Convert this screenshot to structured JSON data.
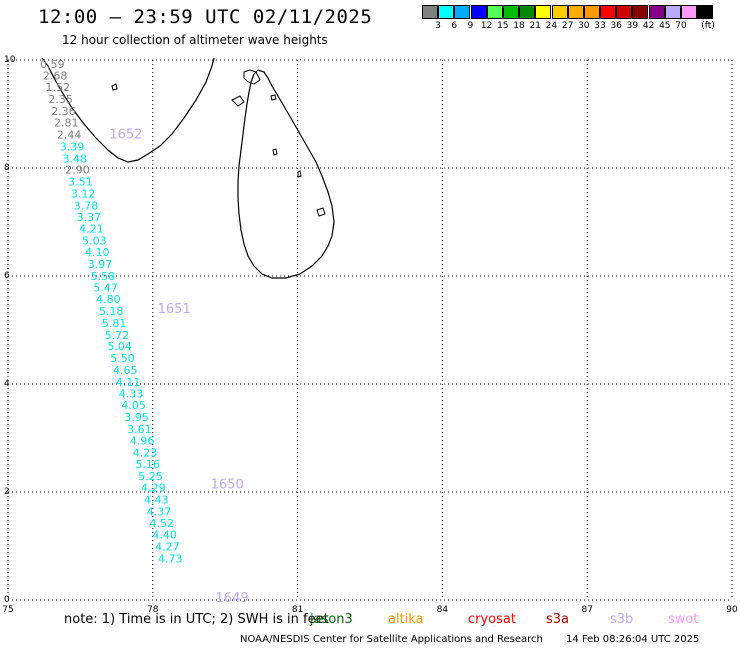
{
  "header": {
    "title": "12:00 – 23:59 UTC 02/11/2025",
    "subtitle": "12 hour collection of altimeter wave heights"
  },
  "legend": {
    "colors": [
      "#808080",
      "#00ffff",
      "#00aaff",
      "#0000ff",
      "#55ff55",
      "#00bb00",
      "#008800",
      "#ffff00",
      "#ffcc00",
      "#ffaa00",
      "#ff9900",
      "#ff0000",
      "#cc0000",
      "#880000",
      "#880088",
      "#bbaaff",
      "#ff99ff",
      "#000000"
    ],
    "labels": [
      "3",
      "6",
      "9",
      "12",
      "15",
      "18",
      "21",
      "24",
      "27",
      "30",
      "33",
      "36",
      "39",
      "42",
      "45",
      "70"
    ],
    "unit": "(ft)"
  },
  "map": {
    "lon_ticks": [
      "75",
      "78",
      "81",
      "84",
      "87",
      "90"
    ],
    "lat_ticks": [
      "10",
      "8",
      "6",
      "4",
      "2",
      "0"
    ],
    "lon_range": [
      75,
      90
    ],
    "lat_range": [
      0,
      10
    ],
    "grid": true,
    "track_points": [
      {
        "lat": 9.93,
        "value": "0.59",
        "color": "#808080"
      },
      {
        "lat": 9.71,
        "value": "2.68",
        "color": "#808080"
      },
      {
        "lat": 9.5,
        "value": "1.52",
        "color": "#808080"
      },
      {
        "lat": 9.28,
        "value": "2.35",
        "color": "#808080"
      },
      {
        "lat": 9.06,
        "value": "2.36",
        "color": "#808080"
      },
      {
        "lat": 8.84,
        "value": "2.81",
        "color": "#808080"
      },
      {
        "lat": 8.62,
        "value": "2.44",
        "color": "#808080"
      },
      {
        "lat": 8.4,
        "value": "3.39",
        "color": "#00e5e5"
      },
      {
        "lat": 8.18,
        "value": "3.48",
        "color": "#00e5e5"
      },
      {
        "lat": 7.97,
        "value": "2.90",
        "color": "#808080"
      },
      {
        "lat": 7.75,
        "value": "3.51",
        "color": "#00e5e5"
      },
      {
        "lat": 7.53,
        "value": "3.12",
        "color": "#00e5e5"
      },
      {
        "lat": 7.31,
        "value": "3.78",
        "color": "#00e5e5"
      },
      {
        "lat": 7.09,
        "value": "3.37",
        "color": "#00e5e5"
      },
      {
        "lat": 6.88,
        "value": "4.21",
        "color": "#00e5e5"
      },
      {
        "lat": 6.66,
        "value": "5.03",
        "color": "#00e5e5"
      },
      {
        "lat": 6.44,
        "value": "4.10",
        "color": "#00e5e5"
      },
      {
        "lat": 6.22,
        "value": "3.97",
        "color": "#00e5e5"
      },
      {
        "lat": 6.0,
        "value": "5.58",
        "color": "#00e5e5"
      },
      {
        "lat": 5.79,
        "value": "5.47",
        "color": "#00e5e5"
      },
      {
        "lat": 5.57,
        "value": "4.80",
        "color": "#00e5e5"
      },
      {
        "lat": 5.35,
        "value": "5.18",
        "color": "#00e5e5"
      },
      {
        "lat": 5.13,
        "value": "5.81",
        "color": "#00e5e5"
      },
      {
        "lat": 4.91,
        "value": "5.72",
        "color": "#00e5e5"
      },
      {
        "lat": 4.7,
        "value": "5.04",
        "color": "#00e5e5"
      },
      {
        "lat": 4.48,
        "value": "5.50",
        "color": "#00e5e5"
      },
      {
        "lat": 4.26,
        "value": "4.65",
        "color": "#00e5e5"
      },
      {
        "lat": 4.04,
        "value": "4.11",
        "color": "#00e5e5"
      },
      {
        "lat": 3.82,
        "value": "4.33",
        "color": "#00e5e5"
      },
      {
        "lat": 3.61,
        "value": "4.05",
        "color": "#00e5e5"
      },
      {
        "lat": 3.39,
        "value": "3.95",
        "color": "#00e5e5"
      },
      {
        "lat": 3.17,
        "value": "3.61",
        "color": "#00e5e5"
      },
      {
        "lat": 2.95,
        "value": "4.96",
        "color": "#00e5e5"
      },
      {
        "lat": 2.73,
        "value": "4.23",
        "color": "#00e5e5"
      },
      {
        "lat": 2.52,
        "value": "5.16",
        "color": "#00e5e5"
      },
      {
        "lat": 2.3,
        "value": "5.25",
        "color": "#00e5e5"
      },
      {
        "lat": 2.08,
        "value": "4.29",
        "color": "#00e5e5"
      },
      {
        "lat": 1.86,
        "value": "4.43",
        "color": "#00e5e5"
      },
      {
        "lat": 1.64,
        "value": "4.37",
        "color": "#00e5e5"
      },
      {
        "lat": 1.43,
        "value": "4.52",
        "color": "#00e5e5"
      },
      {
        "lat": 1.21,
        "value": "4.40",
        "color": "#00e5e5"
      },
      {
        "lat": 0.99,
        "value": "4.27",
        "color": "#00e5e5"
      },
      {
        "lat": 0.77,
        "value": "4.73",
        "color": "#00e5e5"
      }
    ],
    "time_labels": [
      {
        "text": "1652",
        "lon": 77.1,
        "lat": 8.58
      },
      {
        "text": "1651",
        "lon": 78.1,
        "lat": 5.35
      },
      {
        "text": "1650",
        "lon": 79.2,
        "lat": 2.1
      },
      {
        "text": "1649",
        "lon": 79.3,
        "lat": 0.0
      }
    ]
  },
  "footer": {
    "note": "note:  1) Time is in UTC;  2) SWH is in feet",
    "satellites": [
      {
        "name": "jason3",
        "color": "#006600"
      },
      {
        "name": "altika",
        "color": "#ff9900"
      },
      {
        "name": "cryosat",
        "color": "#ff0000"
      },
      {
        "name": "s3a",
        "color": "#aa0000"
      },
      {
        "name": "s3b",
        "color": "#bbaaff"
      },
      {
        "name": "swot",
        "color": "#ff99ff"
      }
    ],
    "credit": "NOAA/NESDIS Center for Satellite Applications and Research",
    "timestamp": "14 Feb 08:26:04 UTC 2025"
  }
}
